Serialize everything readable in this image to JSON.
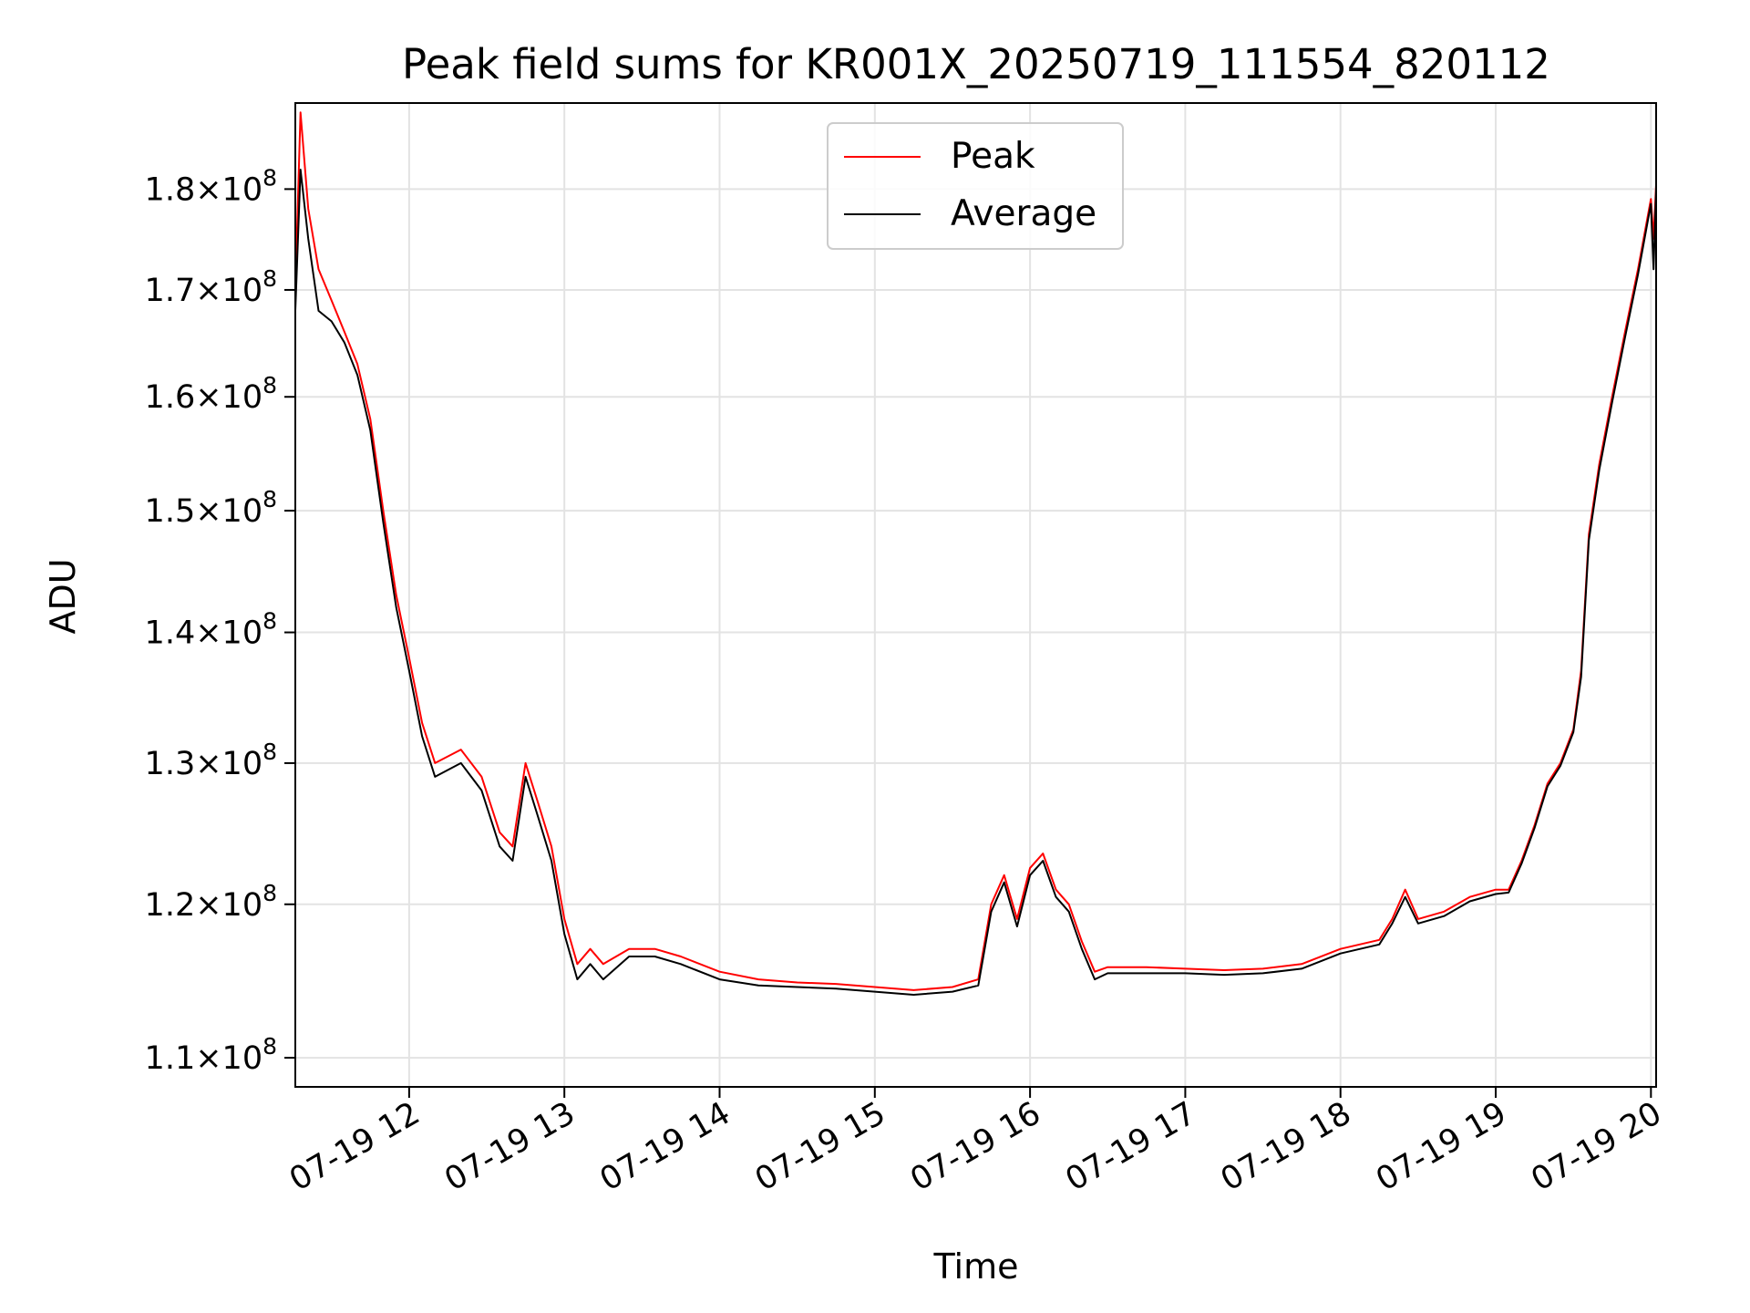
{
  "chart_data": {
    "type": "line",
    "title": "Peak field sums for KR001X_20250719_111554_820112",
    "xlabel": "Time",
    "ylabel": "ADU",
    "y_scale": "log",
    "grid": true,
    "legend_placement": "top-center",
    "xlim": [
      "07-19 11:16",
      "07-19 20:02"
    ],
    "ylim": [
      108200000,
      189000000
    ],
    "x_ticks": [
      "07-19 12",
      "07-19 13",
      "07-19 14",
      "07-19 15",
      "07-19 16",
      "07-19 17",
      "07-19 18",
      "07-19 19",
      "07-19 20"
    ],
    "y_ticks": [
      {
        "value": 110000000,
        "mantissa": "1.1",
        "base": "10",
        "exponent": "8"
      },
      {
        "value": 120000000,
        "mantissa": "1.2",
        "base": "10",
        "exponent": "8"
      },
      {
        "value": 130000000,
        "mantissa": "1.3",
        "base": "10",
        "exponent": "8"
      },
      {
        "value": 140000000,
        "mantissa": "1.4",
        "base": "10",
        "exponent": "8"
      },
      {
        "value": 150000000,
        "mantissa": "1.5",
        "base": "10",
        "exponent": "8"
      },
      {
        "value": 160000000,
        "mantissa": "1.6",
        "base": "10",
        "exponent": "8"
      },
      {
        "value": 170000000,
        "mantissa": "1.7",
        "base": "10",
        "exponent": "8"
      },
      {
        "value": 180000000,
        "mantissa": "1.8",
        "base": "10",
        "exponent": "8"
      }
    ],
    "series": [
      {
        "name": "Peak",
        "color": "#ff0000",
        "x": [
          "07-19 11:16",
          "07-19 11:18",
          "07-19 11:21",
          "07-19 11:25",
          "07-19 11:30",
          "07-19 11:35",
          "07-19 11:40",
          "07-19 11:45",
          "07-19 11:50",
          "07-19 11:55",
          "07-19 12:00",
          "07-19 12:05",
          "07-19 12:10",
          "07-19 12:20",
          "07-19 12:28",
          "07-19 12:35",
          "07-19 12:40",
          "07-19 12:45",
          "07-19 12:50",
          "07-19 12:55",
          "07-19 13:00",
          "07-19 13:05",
          "07-19 13:10",
          "07-19 13:15",
          "07-19 13:25",
          "07-19 13:35",
          "07-19 13:45",
          "07-19 14:00",
          "07-19 14:15",
          "07-19 14:30",
          "07-19 14:45",
          "07-19 15:00",
          "07-19 15:15",
          "07-19 15:30",
          "07-19 15:40",
          "07-19 15:45",
          "07-19 15:50",
          "07-19 15:55",
          "07-19 16:00",
          "07-19 16:05",
          "07-19 16:10",
          "07-19 16:15",
          "07-19 16:20",
          "07-19 16:25",
          "07-19 16:30",
          "07-19 16:45",
          "07-19 17:00",
          "07-19 17:15",
          "07-19 17:30",
          "07-19 17:45",
          "07-19 18:00",
          "07-19 18:15",
          "07-19 18:20",
          "07-19 18:25",
          "07-19 18:30",
          "07-19 18:40",
          "07-19 18:50",
          "07-19 19:00",
          "07-19 19:05",
          "07-19 19:10",
          "07-19 19:15",
          "07-19 19:20",
          "07-19 19:25",
          "07-19 19:30",
          "07-19 19:33",
          "07-19 19:36",
          "07-19 19:40",
          "07-19 19:45",
          "07-19 19:50",
          "07-19 19:55",
          "07-19 20:00",
          "07-19 20:01",
          "07-19 20:02"
        ],
        "y": [
          170000000,
          188000000,
          178000000,
          172000000,
          169000000,
          166000000,
          163000000,
          158000000,
          150000000,
          143000000,
          138000000,
          133000000,
          130000000,
          131000000,
          129000000,
          125000000,
          124000000,
          130000000,
          127000000,
          124000000,
          119000000,
          116000000,
          117000000,
          116000000,
          117000000,
          117000000,
          116500000,
          115500000,
          115000000,
          114800000,
          114700000,
          114500000,
          114300000,
          114500000,
          115000000,
          120000000,
          122000000,
          119000000,
          122500000,
          123500000,
          121000000,
          120000000,
          117500000,
          115500000,
          115800000,
          115800000,
          115700000,
          115600000,
          115700000,
          116000000,
          117000000,
          117600000,
          119000000,
          121000000,
          119000000,
          119500000,
          120500000,
          121000000,
          121000000,
          123000000,
          125500000,
          128500000,
          130000000,
          132500000,
          137000000,
          148000000,
          154000000,
          160000000,
          166000000,
          172000000,
          179000000,
          175000000,
          180500000
        ]
      },
      {
        "name": "Average",
        "color": "#000000",
        "x": [
          "07-19 11:16",
          "07-19 11:18",
          "07-19 11:21",
          "07-19 11:25",
          "07-19 11:30",
          "07-19 11:35",
          "07-19 11:40",
          "07-19 11:45",
          "07-19 11:50",
          "07-19 11:55",
          "07-19 12:00",
          "07-19 12:05",
          "07-19 12:10",
          "07-19 12:20",
          "07-19 12:28",
          "07-19 12:35",
          "07-19 12:40",
          "07-19 12:45",
          "07-19 12:50",
          "07-19 12:55",
          "07-19 13:00",
          "07-19 13:05",
          "07-19 13:10",
          "07-19 13:15",
          "07-19 13:25",
          "07-19 13:35",
          "07-19 13:45",
          "07-19 14:00",
          "07-19 14:15",
          "07-19 14:30",
          "07-19 14:45",
          "07-19 15:00",
          "07-19 15:15",
          "07-19 15:30",
          "07-19 15:40",
          "07-19 15:45",
          "07-19 15:50",
          "07-19 15:55",
          "07-19 16:00",
          "07-19 16:05",
          "07-19 16:10",
          "07-19 16:15",
          "07-19 16:20",
          "07-19 16:25",
          "07-19 16:30",
          "07-19 16:45",
          "07-19 17:00",
          "07-19 17:15",
          "07-19 17:30",
          "07-19 17:45",
          "07-19 18:00",
          "07-19 18:15",
          "07-19 18:20",
          "07-19 18:25",
          "07-19 18:30",
          "07-19 18:40",
          "07-19 18:50",
          "07-19 19:00",
          "07-19 19:05",
          "07-19 19:10",
          "07-19 19:15",
          "07-19 19:20",
          "07-19 19:25",
          "07-19 19:30",
          "07-19 19:33",
          "07-19 19:36",
          "07-19 19:40",
          "07-19 19:45",
          "07-19 19:50",
          "07-19 19:55",
          "07-19 20:00",
          "07-19 20:01",
          "07-19 20:02"
        ],
        "y": [
          168000000,
          182000000,
          175000000,
          168000000,
          167000000,
          165000000,
          162000000,
          157000000,
          149000000,
          142000000,
          137000000,
          132000000,
          129000000,
          130000000,
          128000000,
          124000000,
          123000000,
          129000000,
          126000000,
          123000000,
          118000000,
          115000000,
          116000000,
          115000000,
          116500000,
          116500000,
          116000000,
          115000000,
          114600000,
          114500000,
          114400000,
          114200000,
          114000000,
          114200000,
          114600000,
          119500000,
          121500000,
          118500000,
          122000000,
          123000000,
          120500000,
          119500000,
          117000000,
          115000000,
          115400000,
          115400000,
          115400000,
          115300000,
          115400000,
          115700000,
          116700000,
          117300000,
          118700000,
          120500000,
          118700000,
          119200000,
          120200000,
          120700000,
          120800000,
          122800000,
          125300000,
          128300000,
          129800000,
          132300000,
          136500000,
          147500000,
          153500000,
          159500000,
          165500000,
          171500000,
          178500000,
          172000000,
          180000000
        ]
      }
    ]
  }
}
